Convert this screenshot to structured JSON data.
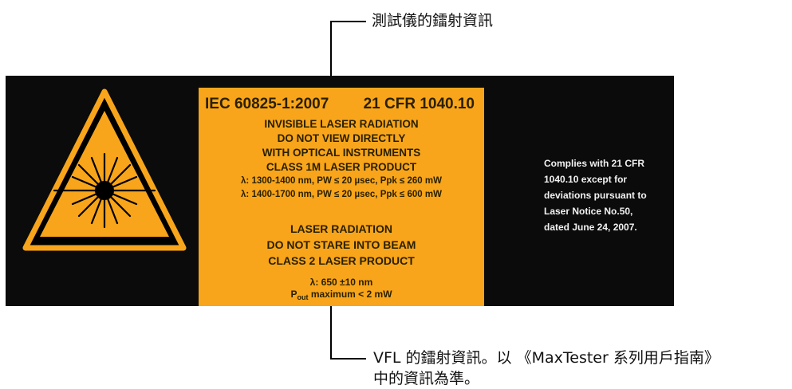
{
  "callouts": {
    "top": "測試儀的鐳射資訊",
    "bottom_line1": "VFL 的鐳射資訊。以 《MaxTester 系列用戶指南》",
    "bottom_line2": "中的資訊為準。"
  },
  "label": {
    "standard_left": "IEC 60825-1:2007",
    "standard_right": "21 CFR 1040.10",
    "invisible_lines": [
      "INVISIBLE LASER RADIATION",
      "DO NOT VIEW DIRECTLY",
      "WITH OPTICAL INSTRUMENTS",
      "CLASS 1M LASER PRODUCT"
    ],
    "spec_lines": [
      "λ: 1300-1400 nm, PW ≤ 20 µsec, Ppk ≤ 260 mW",
      "λ: 1400-1700 nm, PW ≤ 20 µsec, Ppk ≤ 600 mW"
    ],
    "visible_lines": [
      "LASER RADIATION",
      "DO NOT STARE INTO BEAM",
      "CLASS 2 LASER PRODUCT"
    ],
    "wavelength": "λ: 650 ±10 nm",
    "pout_prefix": "P",
    "pout_sub": "out",
    "pout_rest": " maximum < 2 mW",
    "compliance_lines": [
      "Complies with 21 CFR",
      "1040.10 except for",
      "deviations pursuant to",
      "Laser Notice No.50,",
      "dated June 24, 2007."
    ]
  },
  "colors": {
    "label_background": "#0b0b0b",
    "warning_panel": "#f8a51b",
    "triangle_fill": "#f8a51b"
  }
}
